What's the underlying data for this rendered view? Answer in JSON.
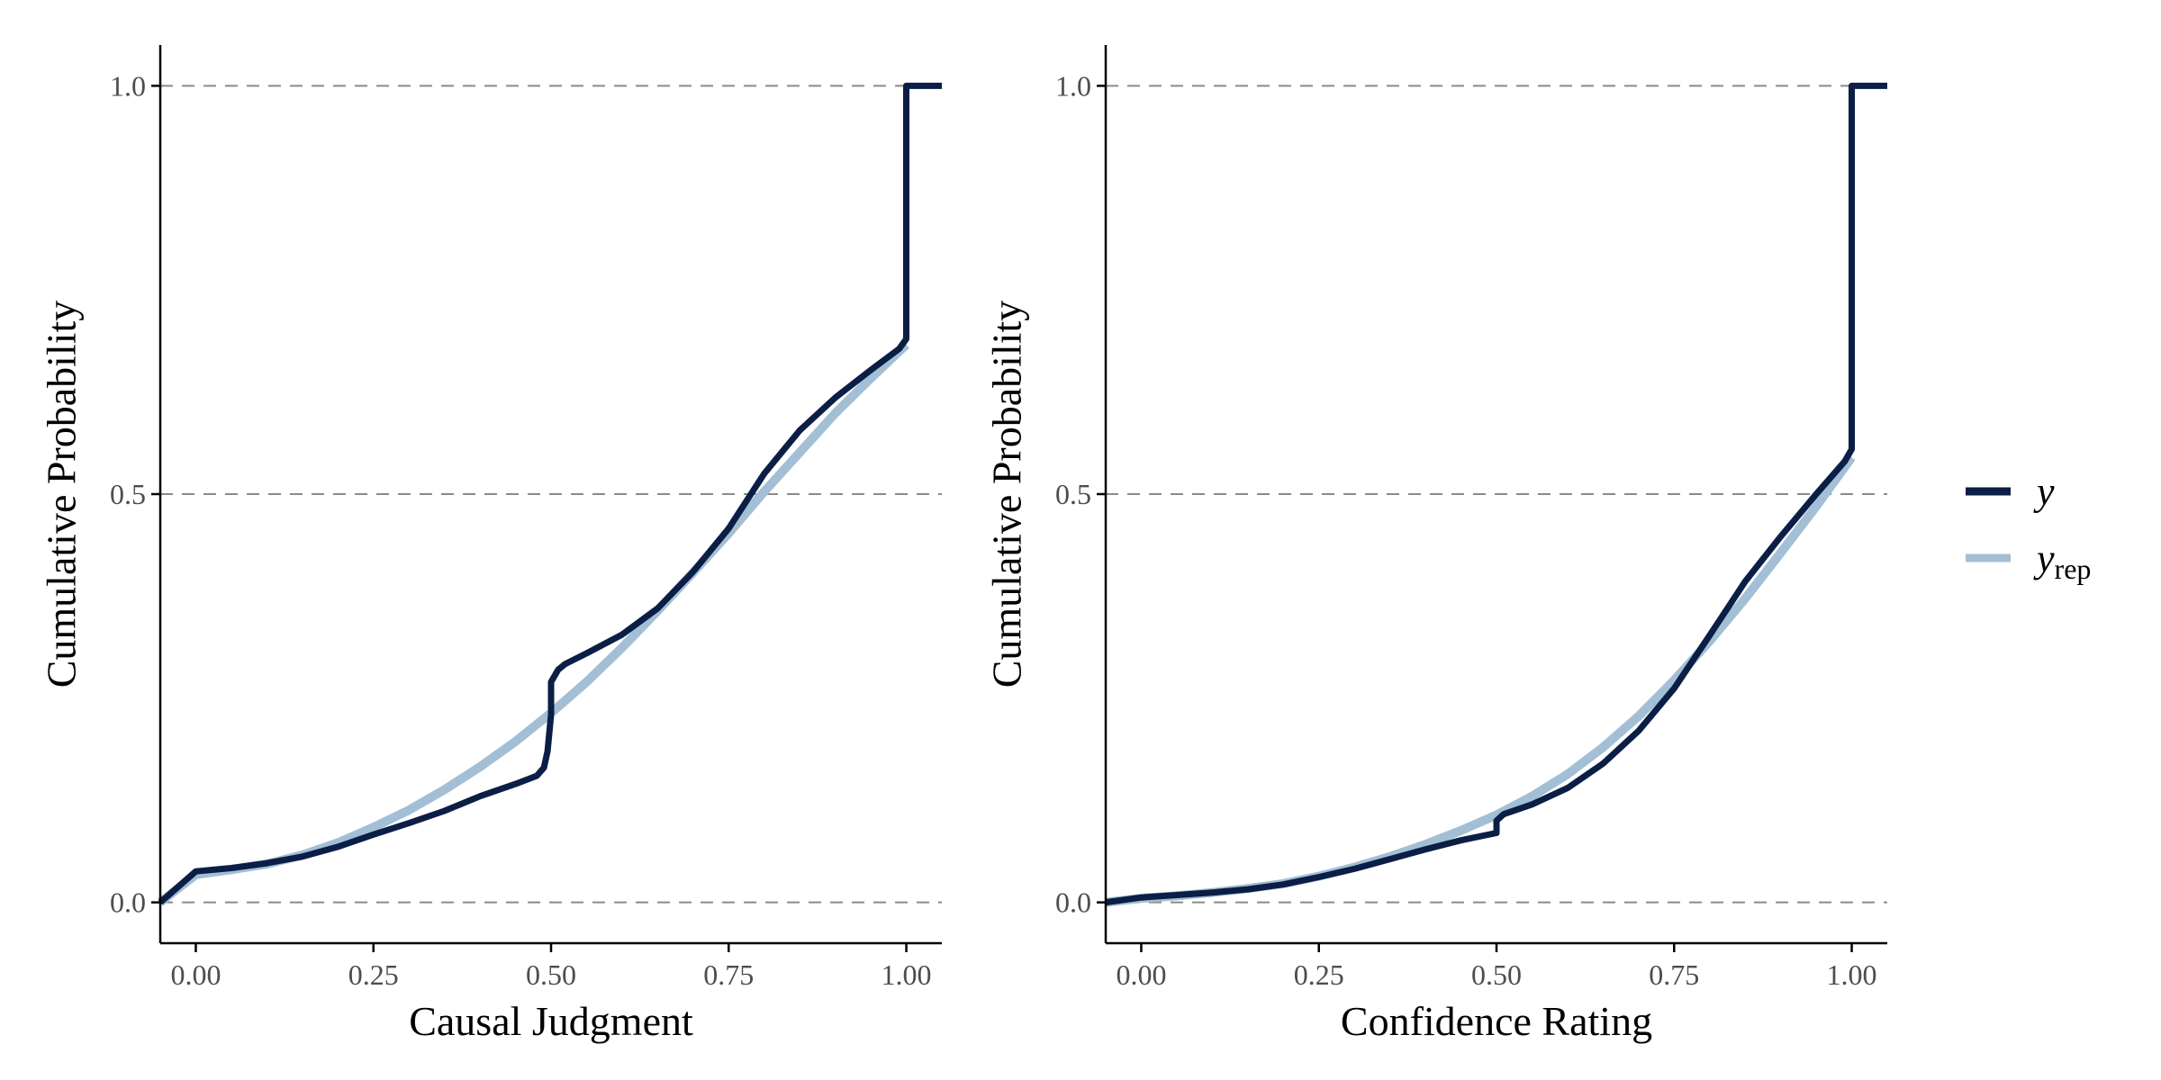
{
  "colors": {
    "y": "#0b1e45",
    "yrep": "#a3bfd6",
    "grid": "#8a8a8a",
    "axis": "#000000"
  },
  "legend": {
    "y_label": "y",
    "yrep_label": "y",
    "yrep_subscript": "rep"
  },
  "chart_data": [
    {
      "type": "line",
      "title": "",
      "xlabel": "Causal Judgment",
      "ylabel": "Cumulative Probability",
      "xlim": [
        -0.05,
        1.05
      ],
      "ylim": [
        -0.05,
        1.05
      ],
      "x_ticks": [
        0,
        0.25,
        0.5,
        0.75,
        1
      ],
      "x_tick_labels": [
        "0.00",
        "0.25",
        "0.50",
        "0.75",
        "1.00"
      ],
      "y_ticks": [
        0,
        0.5,
        1
      ],
      "y_tick_labels": [
        "0.0",
        "0.5",
        "1.0"
      ],
      "grid": "dashed horizontal at y ticks",
      "series": [
        {
          "name": "y",
          "x": [
            -0.05,
            0,
            0.05,
            0.1,
            0.15,
            0.2,
            0.25,
            0.3,
            0.35,
            0.4,
            0.45,
            0.48,
            0.49,
            0.495,
            0.5,
            0.5,
            0.51,
            0.52,
            0.55,
            0.6,
            0.65,
            0.7,
            0.75,
            0.8,
            0.85,
            0.9,
            0.95,
            0.99,
            1,
            1,
            1.05
          ],
          "y": [
            0,
            0.038,
            0.042,
            0.048,
            0.056,
            0.068,
            0.083,
            0.097,
            0.112,
            0.13,
            0.145,
            0.155,
            0.165,
            0.185,
            0.23,
            0.27,
            0.285,
            0.292,
            0.305,
            0.328,
            0.36,
            0.405,
            0.458,
            0.525,
            0.578,
            0.618,
            0.652,
            0.678,
            0.69,
            1,
            1
          ]
        },
        {
          "name": "y_rep",
          "x": [
            -0.05,
            0,
            0.05,
            0.1,
            0.15,
            0.2,
            0.25,
            0.3,
            0.35,
            0.4,
            0.45,
            0.5,
            0.55,
            0.6,
            0.65,
            0.7,
            0.75,
            0.8,
            0.85,
            0.9,
            0.95,
            1
          ],
          "y": [
            0,
            0.034,
            0.04,
            0.047,
            0.058,
            0.073,
            0.092,
            0.113,
            0.138,
            0.166,
            0.197,
            0.232,
            0.27,
            0.312,
            0.357,
            0.404,
            0.452,
            0.503,
            0.551,
            0.599,
            0.642,
            0.683
          ]
        }
      ]
    },
    {
      "type": "line",
      "title": "",
      "xlabel": "Confidence Rating",
      "ylabel": "Cumulative Probability",
      "xlim": [
        -0.05,
        1.05
      ],
      "ylim": [
        -0.05,
        1.05
      ],
      "x_ticks": [
        0,
        0.25,
        0.5,
        0.75,
        1
      ],
      "x_tick_labels": [
        "0.00",
        "0.25",
        "0.50",
        "0.75",
        "1.00"
      ],
      "y_ticks": [
        0,
        0.5,
        1
      ],
      "y_tick_labels": [
        "0.0",
        "0.5",
        "1.0"
      ],
      "grid": "dashed horizontal at y ticks",
      "series": [
        {
          "name": "y",
          "x": [
            -0.05,
            0,
            0.05,
            0.1,
            0.15,
            0.2,
            0.25,
            0.3,
            0.35,
            0.4,
            0.45,
            0.5,
            0.5,
            0.51,
            0.55,
            0.6,
            0.65,
            0.7,
            0.75,
            0.8,
            0.85,
            0.9,
            0.95,
            0.99,
            1,
            1,
            1.05
          ],
          "y": [
            0,
            0.006,
            0.009,
            0.012,
            0.016,
            0.022,
            0.031,
            0.041,
            0.053,
            0.065,
            0.076,
            0.085,
            0.1,
            0.108,
            0.12,
            0.14,
            0.17,
            0.21,
            0.262,
            0.327,
            0.393,
            0.448,
            0.5,
            0.54,
            0.555,
            1,
            1
          ]
        },
        {
          "name": "y_rep",
          "x": [
            -0.05,
            0,
            0.05,
            0.1,
            0.15,
            0.2,
            0.25,
            0.3,
            0.35,
            0.4,
            0.45,
            0.5,
            0.55,
            0.6,
            0.65,
            0.7,
            0.75,
            0.8,
            0.85,
            0.9,
            0.95,
            1
          ],
          "y": [
            0,
            0.005,
            0.008,
            0.012,
            0.017,
            0.023,
            0.032,
            0.043,
            0.056,
            0.071,
            0.088,
            0.107,
            0.13,
            0.157,
            0.19,
            0.228,
            0.272,
            0.32,
            0.372,
            0.428,
            0.485,
            0.545
          ]
        }
      ]
    }
  ]
}
